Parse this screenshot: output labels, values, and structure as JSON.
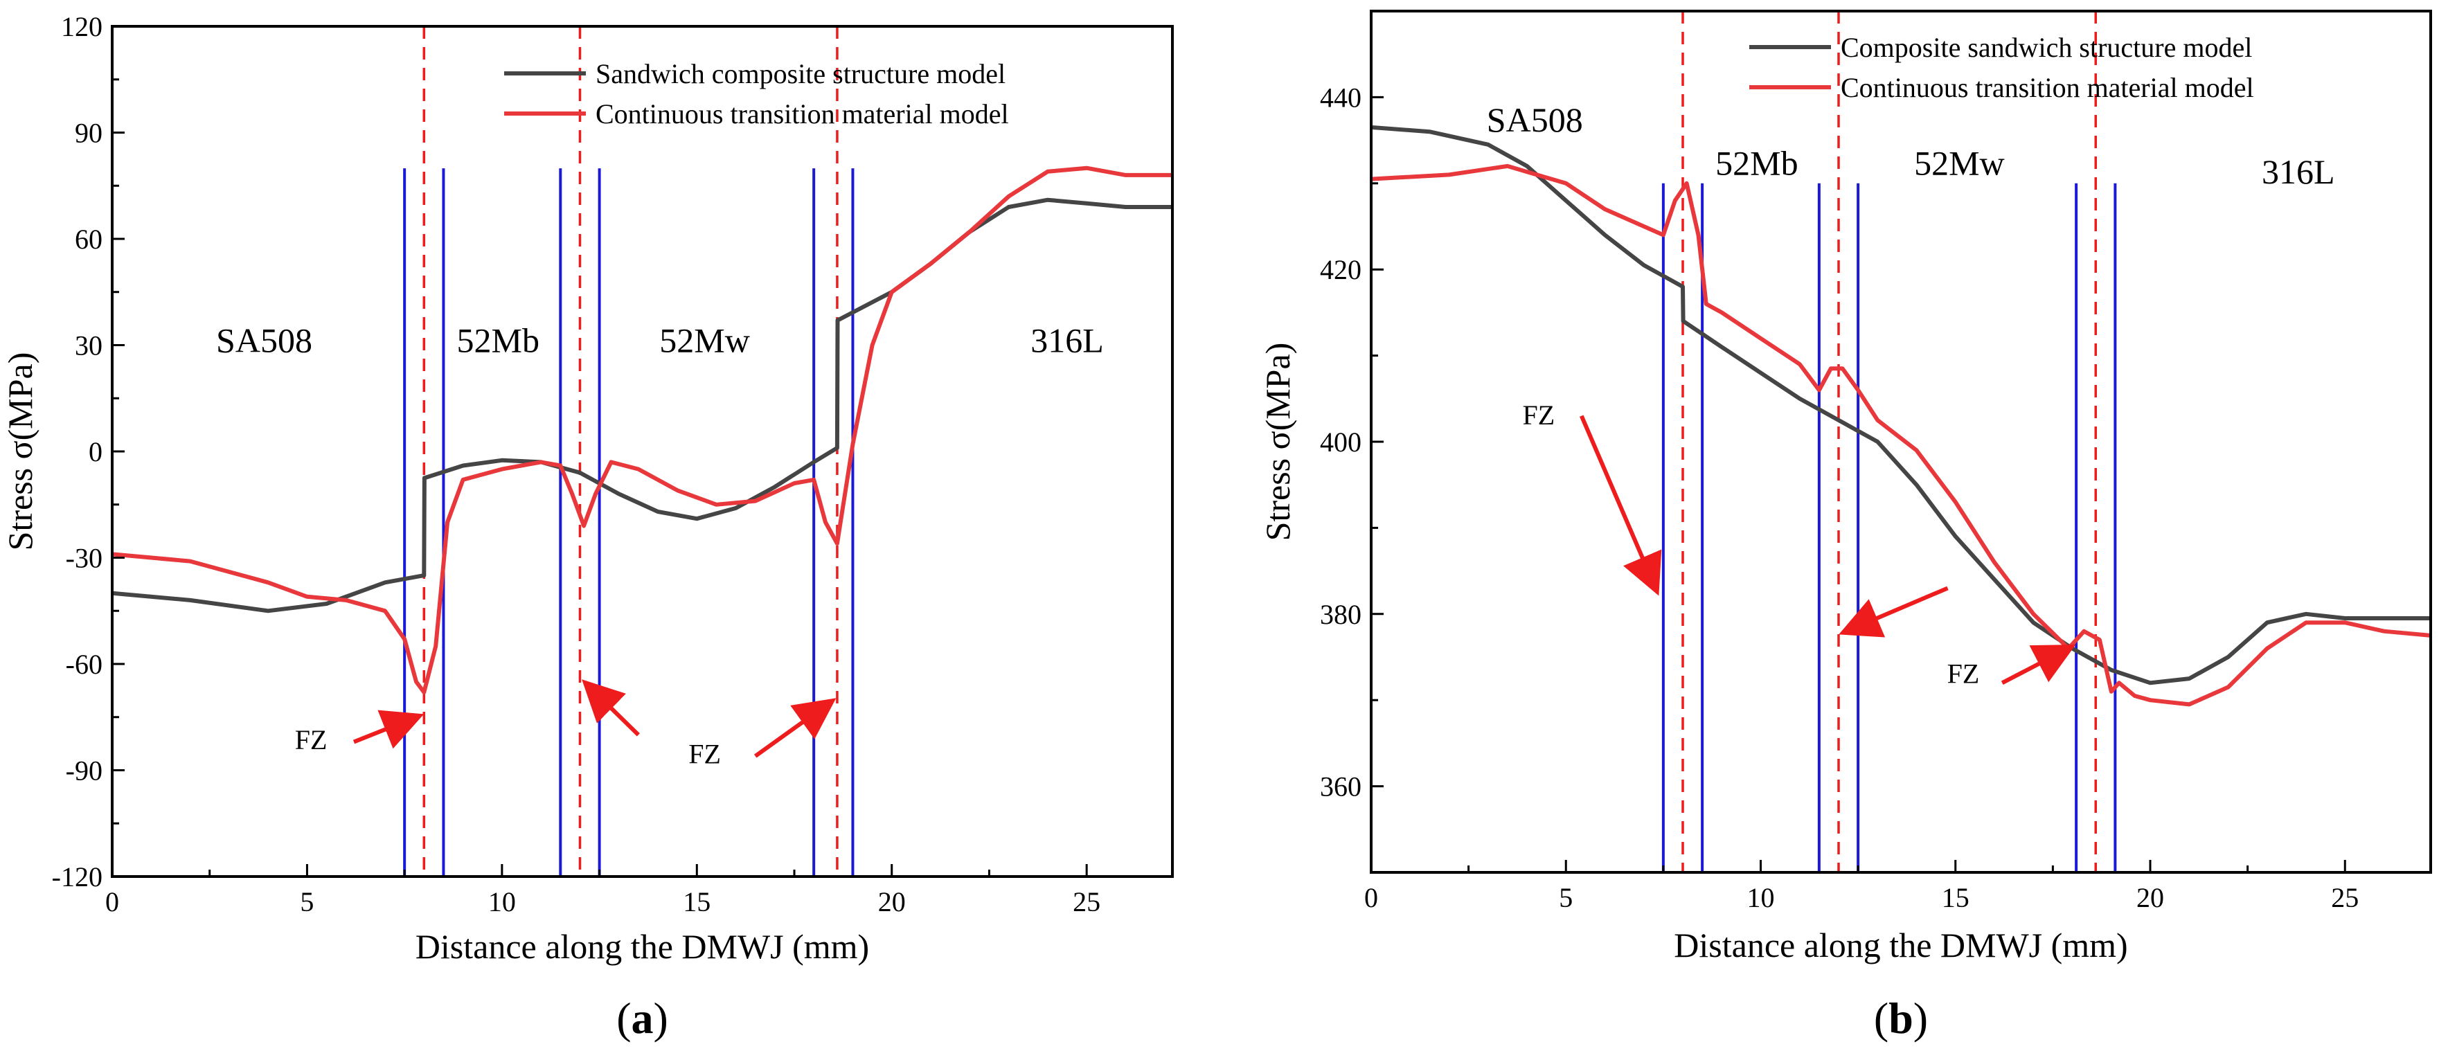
{
  "chart_data": [
    {
      "type": "line",
      "panel_label": "a",
      "xlabel": "Distance along the DMWJ (mm)",
      "ylabel": "Stress σ(MPa)",
      "xlim": [
        0,
        27.2
      ],
      "ylim": [
        -120,
        120
      ],
      "xticks": [
        0,
        5,
        10,
        15,
        20,
        25
      ],
      "yticks": [
        -120,
        -90,
        -60,
        -30,
        0,
        30,
        60,
        90,
        120
      ],
      "legend_position": "top-right",
      "series": [
        {
          "name": "Sandwich composite structure model",
          "color": "#454545",
          "x": [
            0,
            2,
            4,
            5.5,
            7,
            8,
            8.01,
            9,
            10,
            11,
            12,
            13,
            14,
            15,
            16,
            17,
            18,
            18.6,
            18.61,
            20,
            21,
            22,
            23,
            24,
            25,
            26,
            27.2
          ],
          "y": [
            -40,
            -42,
            -45,
            -43,
            -37,
            -35,
            -7.5,
            -4,
            -2.5,
            -3,
            -6,
            -12,
            -17,
            -19,
            -16,
            -10,
            -3,
            1,
            37,
            45,
            53,
            62,
            69,
            71,
            70,
            69,
            69
          ]
        },
        {
          "name": "Continuous transition material model",
          "color": "#e8383b",
          "x": [
            0,
            2,
            4,
            5,
            6,
            7,
            7.5,
            7.8,
            8,
            8.3,
            8.6,
            9,
            10,
            11,
            11.5,
            11.8,
            12.1,
            12.4,
            12.8,
            13.5,
            14.5,
            15.5,
            16.5,
            17.5,
            18,
            18.3,
            18.6,
            19,
            19.5,
            20,
            21,
            22,
            23,
            24,
            25,
            26,
            27.2
          ],
          "y": [
            -29,
            -31,
            -37,
            -41,
            -42,
            -45,
            -53,
            -65,
            -68,
            -55,
            -20,
            -8,
            -5,
            -3,
            -4,
            -12,
            -21,
            -12,
            -3,
            -5,
            -11,
            -15,
            -14,
            -9,
            -8,
            -20,
            -26,
            2,
            30,
            45,
            53,
            62,
            72,
            79,
            80,
            78,
            78
          ]
        }
      ],
      "vlines_solid": [
        7.5,
        8.5,
        11.5,
        12.5,
        18.0,
        19.0
      ],
      "vlines_dashed": [
        8.0,
        12.0,
        18.6
      ],
      "region_labels": [
        {
          "text": "SA508",
          "x": 3.9,
          "y": 28
        },
        {
          "text": "52Mb",
          "x": 9.9,
          "y": 28
        },
        {
          "text": "52Mw",
          "x": 15.2,
          "y": 28
        },
        {
          "text": "316L",
          "x": 24.5,
          "y": 28
        }
      ],
      "annotations": [
        {
          "text": "FZ",
          "label_x": 5.1,
          "label_y": -84,
          "arrow_from": [
            6.2,
            -82
          ],
          "arrow_to": [
            7.8,
            -75
          ]
        },
        {
          "text": "FZ",
          "label_x": 15.2,
          "label_y": -88,
          "arrow_from": [
            13.5,
            -80
          ],
          "arrow_to": [
            12.2,
            -66
          ]
        },
        {
          "text": "FZ",
          "label_x": 15.2,
          "label_y": -88,
          "arrow_from": [
            16.5,
            -86
          ],
          "arrow_to": [
            18.4,
            -71
          ]
        }
      ]
    },
    {
      "type": "line",
      "panel_label": "b",
      "xlabel": "Distance along the DMWJ (mm)",
      "ylabel": "Stress σ(MPa)",
      "xlim": [
        0,
        27.2
      ],
      "ylim": [
        350,
        450
      ],
      "xticks": [
        0,
        5,
        10,
        15,
        20,
        25
      ],
      "yticks": [
        360,
        380,
        400,
        420,
        440
      ],
      "legend_position": "top-right",
      "series": [
        {
          "name": "Composite sandwich structure model",
          "color": "#454545",
          "x": [
            0,
            1.5,
            3,
            4,
            5,
            6,
            7,
            8,
            8.01,
            9,
            10,
            11,
            12,
            13,
            14,
            15,
            16,
            17,
            18,
            19,
            20,
            21,
            22,
            23,
            24,
            25,
            26,
            27.2
          ],
          "y": [
            436.5,
            436,
            434.5,
            432,
            428,
            424,
            420.5,
            418,
            414,
            411,
            408,
            405,
            402.5,
            400,
            395,
            389,
            384,
            379,
            376,
            373.5,
            372,
            372.5,
            375,
            379,
            380,
            379.5,
            379.5,
            379.5
          ]
        },
        {
          "name": "Continuous transition material model",
          "color": "#e8383b",
          "x": [
            0,
            2,
            3.5,
            5,
            6,
            7,
            7.5,
            7.8,
            8.1,
            8.4,
            8.6,
            9,
            10,
            11,
            11.5,
            11.8,
            12.1,
            12.5,
            13,
            14,
            15,
            16,
            17,
            17.9,
            18.3,
            18.7,
            19,
            19.2,
            19.6,
            20,
            21,
            22,
            23,
            24,
            25,
            26,
            27.2
          ],
          "y": [
            430.5,
            431,
            432,
            430,
            427,
            425,
            424,
            428,
            430,
            424,
            416,
            415,
            412,
            409,
            406,
            408.5,
            408.5,
            406,
            402.5,
            399,
            393,
            386,
            380,
            376,
            378,
            377,
            371,
            372,
            370.5,
            370,
            369.5,
            371.5,
            376,
            379,
            379,
            378,
            377.5
          ]
        }
      ],
      "vlines_solid": [
        7.5,
        8.5,
        11.5,
        12.5,
        18.1,
        19.1
      ],
      "vlines_dashed": [
        8.0,
        12.0,
        18.6
      ],
      "region_labels": [
        {
          "text": "SA508",
          "x": 4.2,
          "y": 436
        },
        {
          "text": "52Mb",
          "x": 9.9,
          "y": 431
        },
        {
          "text": "52Mw",
          "x": 15.1,
          "y": 431
        },
        {
          "text": "316L",
          "x": 23.8,
          "y": 430
        }
      ],
      "annotations": [
        {
          "text": "FZ",
          "label_x": 4.3,
          "label_y": 402,
          "arrow_from": [
            5.4,
            403
          ],
          "arrow_to": [
            7.3,
            383
          ]
        },
        {
          "text": "FZ",
          "label_x": 15.2,
          "label_y": 372,
          "arrow_from": [
            14.8,
            383
          ],
          "arrow_to": [
            12.2,
            378
          ]
        },
        {
          "text": "FZ",
          "label_x": 15.2,
          "label_y": 372,
          "arrow_from": [
            16.2,
            372
          ],
          "arrow_to": [
            17.9,
            376
          ]
        }
      ]
    }
  ]
}
